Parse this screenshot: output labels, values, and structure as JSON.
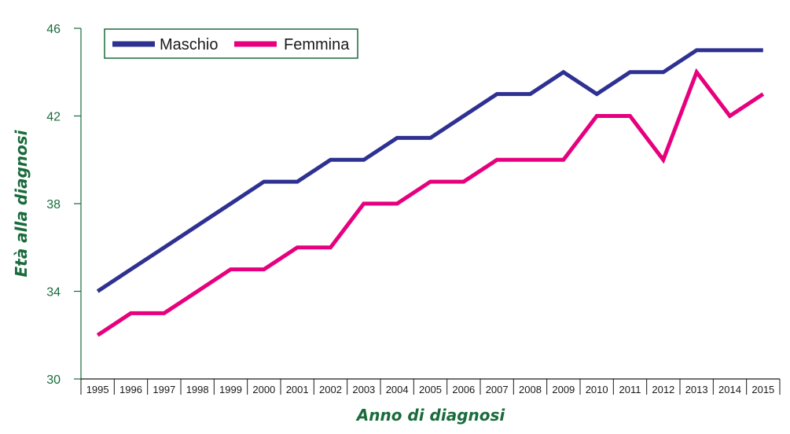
{
  "chart_data": {
    "type": "line",
    "xlabel": "Anno di diagnosi",
    "ylabel": "Età alla diagnosi",
    "ylim": [
      30,
      46
    ],
    "yticks": [
      30,
      34,
      38,
      42,
      46
    ],
    "categories": [
      "1995",
      "1996",
      "1997",
      "1998",
      "1999",
      "2000",
      "2001",
      "2002",
      "2003",
      "2004",
      "2005",
      "2006",
      "2007",
      "2008",
      "2009",
      "2010",
      "2011",
      "2012",
      "2013",
      "2014",
      "2015"
    ],
    "grid": false,
    "legend_position": "top-left",
    "series": [
      {
        "name": "Maschio",
        "color": "#2e3192",
        "values": [
          34,
          35,
          36,
          37,
          38,
          39,
          39,
          40,
          40,
          41,
          41,
          42,
          43,
          43,
          44,
          43,
          44,
          44,
          45,
          45,
          45
        ]
      },
      {
        "name": "Femmina",
        "color": "#e6007e",
        "values": [
          32,
          33,
          33,
          34,
          35,
          35,
          36,
          36,
          38,
          38,
          39,
          39,
          40,
          40,
          40,
          42,
          42,
          40,
          44,
          42,
          43
        ]
      }
    ]
  },
  "colors": {
    "axis": "#1a6b3c",
    "legend_border": "#1a6b3c"
  }
}
